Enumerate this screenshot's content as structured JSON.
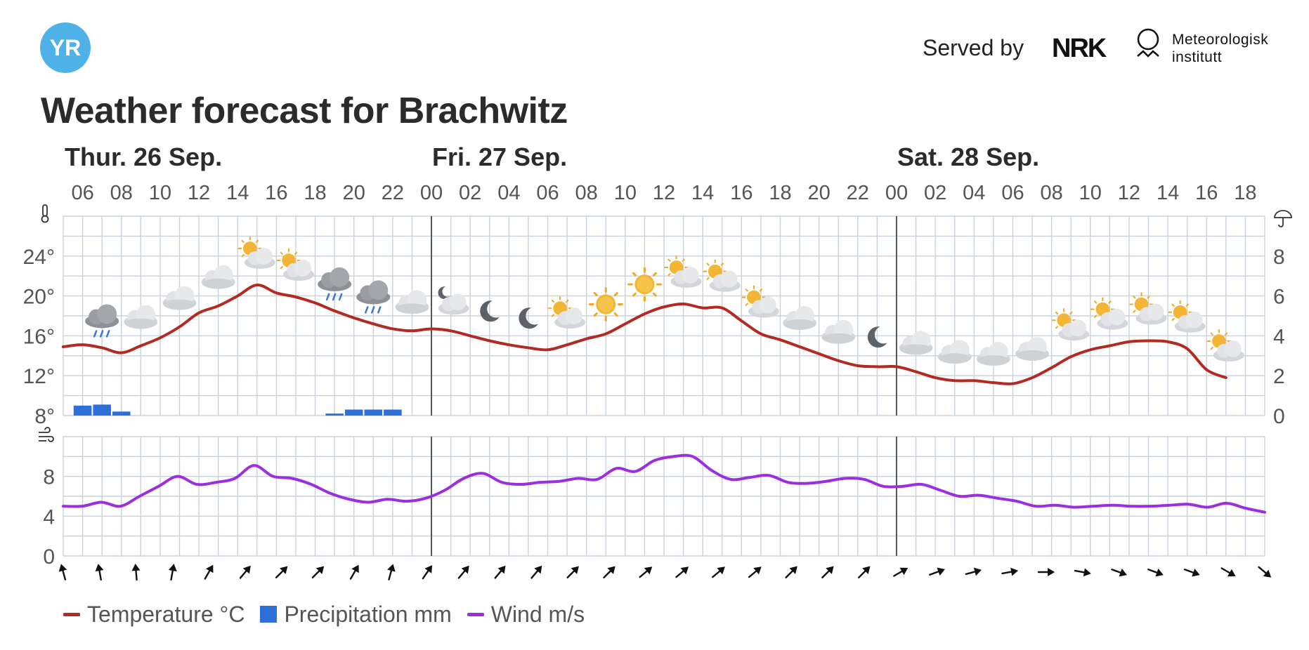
{
  "header": {
    "logo_text": "YR",
    "served_by": "Served by",
    "nrk_logo": "NRK",
    "met_line1": "Meteorologisk",
    "met_line2": "institutt",
    "title": "Weather forecast for Brachwitz"
  },
  "colors": {
    "temperature": "#b22a22",
    "precipitation": "#2f6fd8",
    "wind": "#9b2fe0",
    "grid": "#c9d2da",
    "logo": "#4eb1e8"
  },
  "chart_data": {
    "type": "line",
    "days": [
      {
        "label": "Thur. 26 Sep.",
        "start_hour": 6
      },
      {
        "label": "Fri. 27 Sep.",
        "start_hour": 24
      },
      {
        "label": "Sat. 28 Sep.",
        "start_hour": 48
      }
    ],
    "hour_ticks": [
      "06",
      "08",
      "10",
      "12",
      "14",
      "16",
      "18",
      "20",
      "22",
      "00",
      "02",
      "04",
      "06",
      "08",
      "10",
      "12",
      "14",
      "16",
      "18",
      "20",
      "22",
      "00",
      "02",
      "04",
      "06",
      "08",
      "10",
      "12",
      "14",
      "16",
      "18"
    ],
    "x_range_hours": [
      5,
      67
    ],
    "temperature": {
      "name": "Temperature °C",
      "unit": "°C",
      "y_range": [
        8,
        28
      ],
      "y_ticks": [
        "8°",
        "12°",
        "16°",
        "20°",
        "24°"
      ],
      "values": [
        14.9,
        15.1,
        14.8,
        14.3,
        15.0,
        15.8,
        16.9,
        18.3,
        19.0,
        20.0,
        21.1,
        20.3,
        19.9,
        19.3,
        18.5,
        17.8,
        17.2,
        16.7,
        16.5,
        16.7,
        16.5,
        16.0,
        15.5,
        15.1,
        14.8,
        14.6,
        15.1,
        15.7,
        16.2,
        17.2,
        18.2,
        18.9,
        19.2,
        18.8,
        18.8,
        17.5,
        16.2,
        15.6,
        14.9,
        14.2,
        13.5,
        13.0,
        12.9,
        12.9,
        12.4,
        11.8,
        11.5,
        11.5,
        11.3,
        11.2,
        11.8,
        12.8,
        13.9,
        14.6,
        15.0,
        15.4,
        15.5,
        15.4,
        14.7,
        12.6,
        11.8
      ]
    },
    "precipitation": {
      "name": "Precipitation mm",
      "unit": "mm",
      "y_range": [
        0,
        10
      ],
      "y_ticks": [
        "0",
        "2",
        "4",
        "6",
        "8"
      ],
      "bars": [
        {
          "hour": 6,
          "value": 0.5
        },
        {
          "hour": 7,
          "value": 0.55
        },
        {
          "hour": 8,
          "value": 0.2
        },
        {
          "hour": 19,
          "value": 0.1
        },
        {
          "hour": 20,
          "value": 0.3
        },
        {
          "hour": 21,
          "value": 0.3
        },
        {
          "hour": 22,
          "value": 0.3
        }
      ]
    },
    "wind": {
      "name": "Wind m/s",
      "unit": "m/s",
      "y_range": [
        0,
        12
      ],
      "y_ticks": [
        "0",
        "4",
        "8"
      ],
      "values": [
        5.0,
        5.0,
        5.4,
        5.0,
        6.0,
        7.0,
        8.0,
        7.2,
        7.4,
        7.8,
        9.1,
        8.0,
        7.8,
        7.2,
        6.3,
        5.7,
        5.4,
        5.7,
        5.5,
        5.8,
        6.6,
        7.8,
        8.3,
        7.4,
        7.2,
        7.4,
        7.5,
        7.8,
        7.7,
        8.8,
        8.5,
        9.6,
        10.0,
        10.0,
        8.6,
        7.7,
        7.9,
        8.1,
        7.4,
        7.3,
        7.5,
        7.8,
        7.7,
        7.0,
        7.0,
        7.2,
        6.6,
        6.0,
        6.1,
        5.8,
        5.5,
        5.0,
        5.1,
        4.9,
        5.0,
        5.1,
        5.0,
        5.0,
        5.1,
        5.2,
        4.9,
        5.3,
        4.8,
        4.4
      ]
    },
    "wind_directions_deg": [
      165,
      170,
      175,
      190,
      210,
      220,
      225,
      225,
      210,
      195,
      215,
      220,
      220,
      220,
      225,
      225,
      230,
      230,
      230,
      230,
      225,
      225,
      225,
      240,
      250,
      255,
      260,
      270,
      280,
      290,
      290,
      290,
      300,
      310
    ],
    "weather_icons": [
      {
        "hour": 7,
        "icon": "rain-cloud-icon"
      },
      {
        "hour": 9,
        "icon": "cloud-icon"
      },
      {
        "hour": 11,
        "icon": "cloud-icon"
      },
      {
        "hour": 13,
        "icon": "cloud-icon"
      },
      {
        "hour": 15,
        "icon": "partly-sunny-icon"
      },
      {
        "hour": 17,
        "icon": "partly-sunny-icon"
      },
      {
        "hour": 19,
        "icon": "rain-cloud-icon"
      },
      {
        "hour": 21,
        "icon": "rain-cloud-icon"
      },
      {
        "hour": 23,
        "icon": "cloud-icon"
      },
      {
        "hour": 25,
        "icon": "partly-cloudy-night-icon"
      },
      {
        "hour": 27,
        "icon": "moon-icon"
      },
      {
        "hour": 29,
        "icon": "moon-icon"
      },
      {
        "hour": 31,
        "icon": "partly-sunny-icon"
      },
      {
        "hour": 33,
        "icon": "sun-icon"
      },
      {
        "hour": 35,
        "icon": "sun-icon"
      },
      {
        "hour": 37,
        "icon": "partly-sunny-icon"
      },
      {
        "hour": 39,
        "icon": "partly-sunny-icon"
      },
      {
        "hour": 41,
        "icon": "partly-sunny-icon"
      },
      {
        "hour": 43,
        "icon": "cloud-icon"
      },
      {
        "hour": 45,
        "icon": "cloud-icon"
      },
      {
        "hour": 47,
        "icon": "moon-icon"
      },
      {
        "hour": 49,
        "icon": "cloud-icon"
      },
      {
        "hour": 51,
        "icon": "cloud-icon"
      },
      {
        "hour": 53,
        "icon": "cloud-icon"
      },
      {
        "hour": 55,
        "icon": "cloud-icon"
      },
      {
        "hour": 57,
        "icon": "partly-sunny-icon"
      },
      {
        "hour": 59,
        "icon": "partly-sunny-icon"
      },
      {
        "hour": 61,
        "icon": "partly-sunny-icon"
      },
      {
        "hour": 63,
        "icon": "partly-sunny-icon"
      },
      {
        "hour": 65,
        "icon": "partly-sunny-icon"
      }
    ],
    "legend": [
      {
        "name": "Temperature °C",
        "marker": "line",
        "color": "#b22a22"
      },
      {
        "name": "Precipitation mm",
        "marker": "box",
        "color": "#2f6fd8"
      },
      {
        "name": "Wind m/s",
        "marker": "line",
        "color": "#9b2fe0"
      }
    ],
    "legend_position": "bottom-left",
    "grid": true
  }
}
